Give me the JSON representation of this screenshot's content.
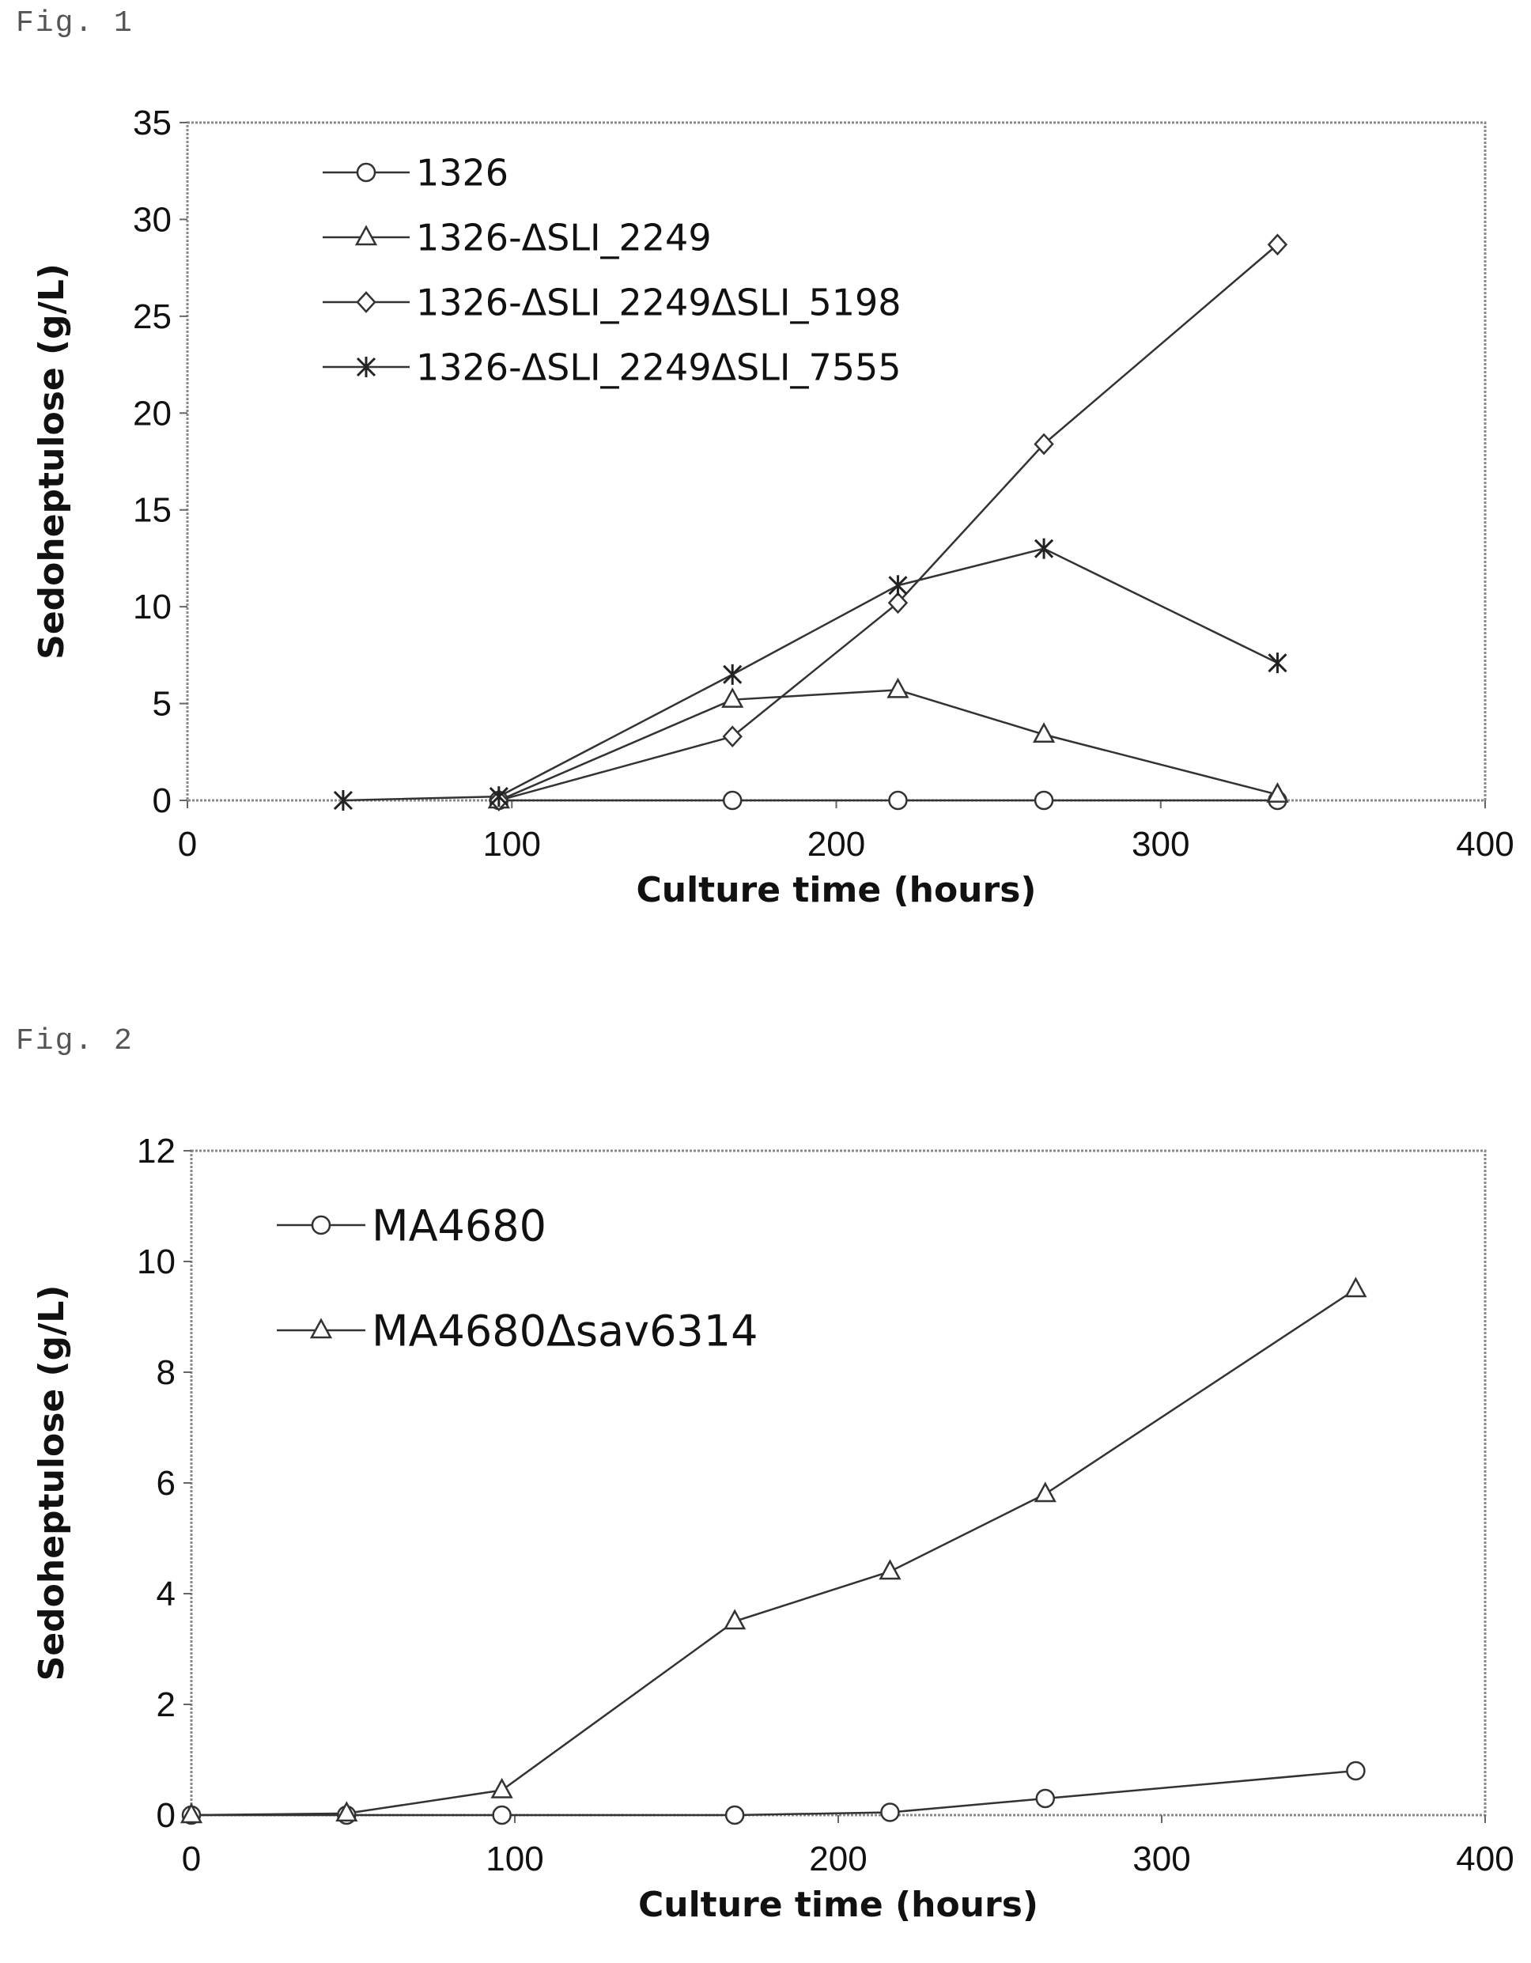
{
  "figures": [
    {
      "label": "Fig. 1"
    },
    {
      "label": "Fig. 2"
    }
  ],
  "chart_data": [
    {
      "type": "line",
      "xlabel": "Culture time (hours)",
      "ylabel": "Sedoheptulose (g/L)",
      "xlim": [
        0,
        400
      ],
      "ylim": [
        0,
        35
      ],
      "xticks": [
        0,
        100,
        200,
        300,
        400
      ],
      "yticks": [
        0,
        5,
        10,
        15,
        20,
        25,
        30,
        35
      ],
      "grid": false,
      "legend_position": "top-left",
      "series": [
        {
          "name": "1326",
          "marker": "circle",
          "x": [
            96,
            168,
            219,
            264,
            336
          ],
          "y": [
            0,
            0,
            0,
            0,
            0
          ]
        },
        {
          "name": "1326-ΔSLI_2249",
          "marker": "triangle",
          "x": [
            96,
            168,
            219,
            264,
            336
          ],
          "y": [
            0,
            5.2,
            5.7,
            3.4,
            0.3
          ]
        },
        {
          "name": "1326-ΔSLI_2249ΔSLI_5198",
          "marker": "diamond",
          "x": [
            96,
            168,
            219,
            264,
            336
          ],
          "y": [
            0,
            3.3,
            10.2,
            18.4,
            28.7
          ]
        },
        {
          "name": "1326-ΔSLI_2249ΔSLI_7555",
          "marker": "star",
          "x": [
            48,
            96,
            168,
            219,
            264,
            336
          ],
          "y": [
            0,
            0.2,
            6.5,
            11.1,
            13.0,
            7.1
          ]
        }
      ]
    },
    {
      "type": "line",
      "xlabel": "Culture time (hours)",
      "ylabel": "Sedoheptulose (g/L)",
      "xlim": [
        0,
        400
      ],
      "ylim": [
        0,
        12
      ],
      "xticks": [
        0,
        100,
        200,
        300,
        400
      ],
      "yticks": [
        0,
        2,
        4,
        6,
        8,
        10,
        12
      ],
      "grid": false,
      "legend_position": "top-left",
      "series": [
        {
          "name": "MA4680",
          "marker": "circle",
          "x": [
            0,
            48,
            96,
            168,
            216,
            264,
            360
          ],
          "y": [
            0,
            0,
            0,
            0,
            0.05,
            0.3,
            0.8
          ]
        },
        {
          "name": "MA4680Δsav6314",
          "marker": "triangle",
          "x": [
            0,
            48,
            96,
            168,
            216,
            264,
            360
          ],
          "y": [
            0,
            0.03,
            0.45,
            3.5,
            4.4,
            5.8,
            9.5
          ]
        }
      ]
    }
  ]
}
